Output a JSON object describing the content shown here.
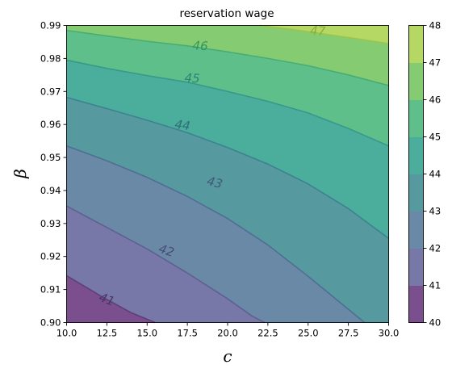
{
  "chart_data": {
    "type": "contour",
    "title": "reservation wage",
    "xlabel": "c",
    "ylabel": "β",
    "xlim": [
      10.0,
      30.0
    ],
    "ylim": [
      0.9,
      0.99
    ],
    "x_ticks": [
      "10.0",
      "12.5",
      "15.0",
      "17.5",
      "20.0",
      "22.5",
      "25.0",
      "27.5",
      "30.0"
    ],
    "y_ticks": [
      "0.90",
      "0.91",
      "0.92",
      "0.93",
      "0.94",
      "0.95",
      "0.96",
      "0.97",
      "0.98",
      "0.99"
    ],
    "colorbar": {
      "ticks": [
        "40",
        "41",
        "42",
        "43",
        "44",
        "45",
        "46",
        "47",
        "48"
      ],
      "levels": [
        40,
        41,
        42,
        43,
        44,
        45,
        46,
        47,
        48
      ],
      "colors": [
        "#7b4f8e",
        "#7777a8",
        "#6a89a6",
        "#56999f",
        "#4bad9c",
        "#5fbf8a",
        "#84cb72",
        "#b5d763",
        "#e0e34f"
      ]
    },
    "contours": [
      {
        "level": 41,
        "label": "41",
        "points": [
          [
            10.0,
            0.9142
          ],
          [
            12.2,
            0.9078
          ],
          [
            14.0,
            0.903
          ],
          [
            15.5,
            0.9
          ]
        ]
      },
      {
        "level": 42,
        "label": "42",
        "points": [
          [
            10.0,
            0.9353
          ],
          [
            13.0,
            0.9275
          ],
          [
            15.0,
            0.9223
          ],
          [
            17.5,
            0.915
          ],
          [
            20.0,
            0.9072
          ],
          [
            21.5,
            0.902
          ],
          [
            22.3,
            0.9
          ]
        ]
      },
      {
        "level": 43,
        "label": "43",
        "points": [
          [
            10.0,
            0.9535
          ],
          [
            12.5,
            0.949
          ],
          [
            15.0,
            0.944
          ],
          [
            17.5,
            0.9382
          ],
          [
            20.0,
            0.9315
          ],
          [
            22.5,
            0.9235
          ],
          [
            25.0,
            0.914
          ],
          [
            27.5,
            0.904
          ],
          [
            28.5,
            0.9
          ]
        ]
      },
      {
        "level": 44,
        "label": "44",
        "points": [
          [
            10.0,
            0.9682
          ],
          [
            12.5,
            0.9648
          ],
          [
            15.0,
            0.9613
          ],
          [
            17.5,
            0.9575
          ],
          [
            20.0,
            0.953
          ],
          [
            22.5,
            0.948
          ],
          [
            25.0,
            0.942
          ],
          [
            27.5,
            0.9345
          ],
          [
            30.0,
            0.9255
          ]
        ]
      },
      {
        "level": 45,
        "label": "45",
        "points": [
          [
            10.0,
            0.9795
          ],
          [
            12.5,
            0.977
          ],
          [
            15.0,
            0.9748
          ],
          [
            17.5,
            0.9728
          ],
          [
            20.0,
            0.97
          ],
          [
            22.5,
            0.967
          ],
          [
            25.0,
            0.9635
          ],
          [
            27.5,
            0.9588
          ],
          [
            30.0,
            0.9535
          ]
        ]
      },
      {
        "level": 46,
        "label": "46",
        "points": [
          [
            10.0,
            0.9885
          ],
          [
            12.5,
            0.9868
          ],
          [
            15.0,
            0.9852
          ],
          [
            17.5,
            0.9838
          ],
          [
            20.0,
            0.982
          ],
          [
            22.5,
            0.98
          ],
          [
            25.0,
            0.9778
          ],
          [
            27.5,
            0.975
          ],
          [
            30.0,
            0.9718
          ]
        ]
      },
      {
        "level": 47,
        "label": "47",
        "points": [
          [
            22.0,
            0.99
          ],
          [
            24.0,
            0.9888
          ],
          [
            26.0,
            0.9874
          ],
          [
            28.0,
            0.986
          ],
          [
            30.0,
            0.9845
          ]
        ]
      }
    ]
  }
}
